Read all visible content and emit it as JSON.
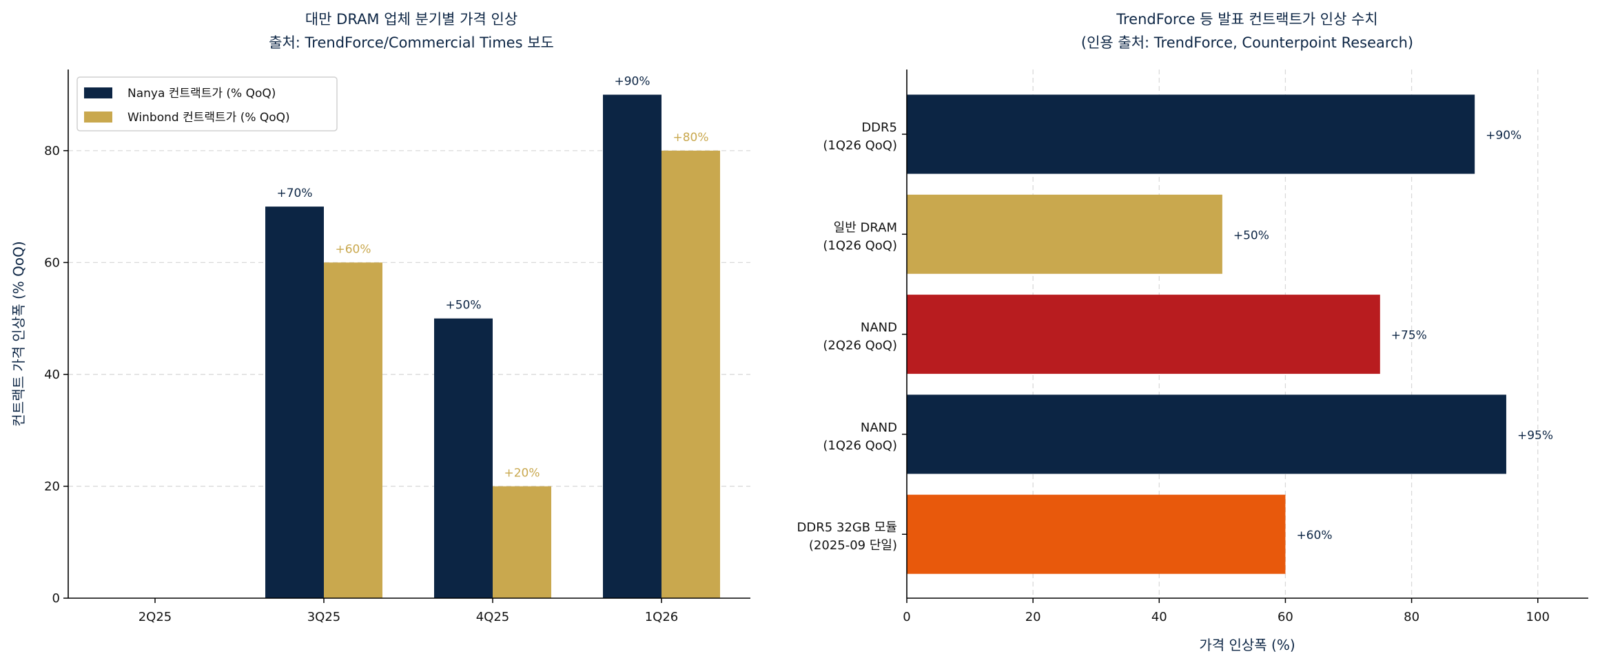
{
  "colors": {
    "navy": "#0c2544",
    "gold": "#c9a84e",
    "red": "#b81c1f",
    "orange": "#e8590c",
    "grid": "#d9d9d9"
  },
  "chart_data": [
    {
      "type": "bar",
      "orientation": "vertical",
      "title": "대만 DRAM 업체 분기별 가격 인상",
      "subtitle": "출처: TrendForce/Commercial Times 보도",
      "xlabel": "",
      "ylabel": "컨트랙트 가격 인상폭 (% QoQ)",
      "categories": [
        "2Q25",
        "3Q25",
        "4Q25",
        "1Q26"
      ],
      "ylim": [
        0,
        94.5
      ],
      "yticks": [
        0,
        20,
        40,
        60,
        80
      ],
      "grid": "y-dashed",
      "legend": "top-left",
      "series": [
        {
          "name": "Nanya 컨트랙트가 (% QoQ)",
          "color": "#0c2544",
          "values": [
            0,
            70,
            50,
            90
          ],
          "labels": [
            "",
            "+70%",
            "+50%",
            "+90%"
          ]
        },
        {
          "name": "Winbond 컨트랙트가 (% QoQ)",
          "color": "#c9a84e",
          "values": [
            0,
            60,
            20,
            80
          ],
          "labels": [
            "",
            "+60%",
            "+20%",
            "+80%"
          ]
        }
      ]
    },
    {
      "type": "bar",
      "orientation": "horizontal",
      "title": "TrendForce 등 발표 컨트랙트가 인상 수치",
      "subtitle": "(인용 출처: TrendForce, Counterpoint Research)",
      "xlabel": "가격 인상폭 (%)",
      "ylabel": "",
      "xlim": [
        0,
        108
      ],
      "xticks": [
        0,
        20,
        40,
        60,
        80,
        100
      ],
      "grid": "x-dashed",
      "categories": [
        [
          "DDR5",
          "(1Q26 QoQ)"
        ],
        [
          "일반 DRAM",
          "(1Q26 QoQ)"
        ],
        [
          "NAND",
          "(2Q26 QoQ)"
        ],
        [
          "NAND",
          "(1Q26 QoQ)"
        ],
        [
          "DDR5 32GB 모듈",
          "(2025-09 단일)"
        ]
      ],
      "values": [
        90,
        50,
        75,
        95,
        60
      ],
      "labels": [
        "+90%",
        "+50%",
        "+75%",
        "+95%",
        "+60%"
      ],
      "bar_colors": [
        "#0c2544",
        "#c9a84e",
        "#b81c1f",
        "#0c2544",
        "#e8590c"
      ]
    }
  ]
}
